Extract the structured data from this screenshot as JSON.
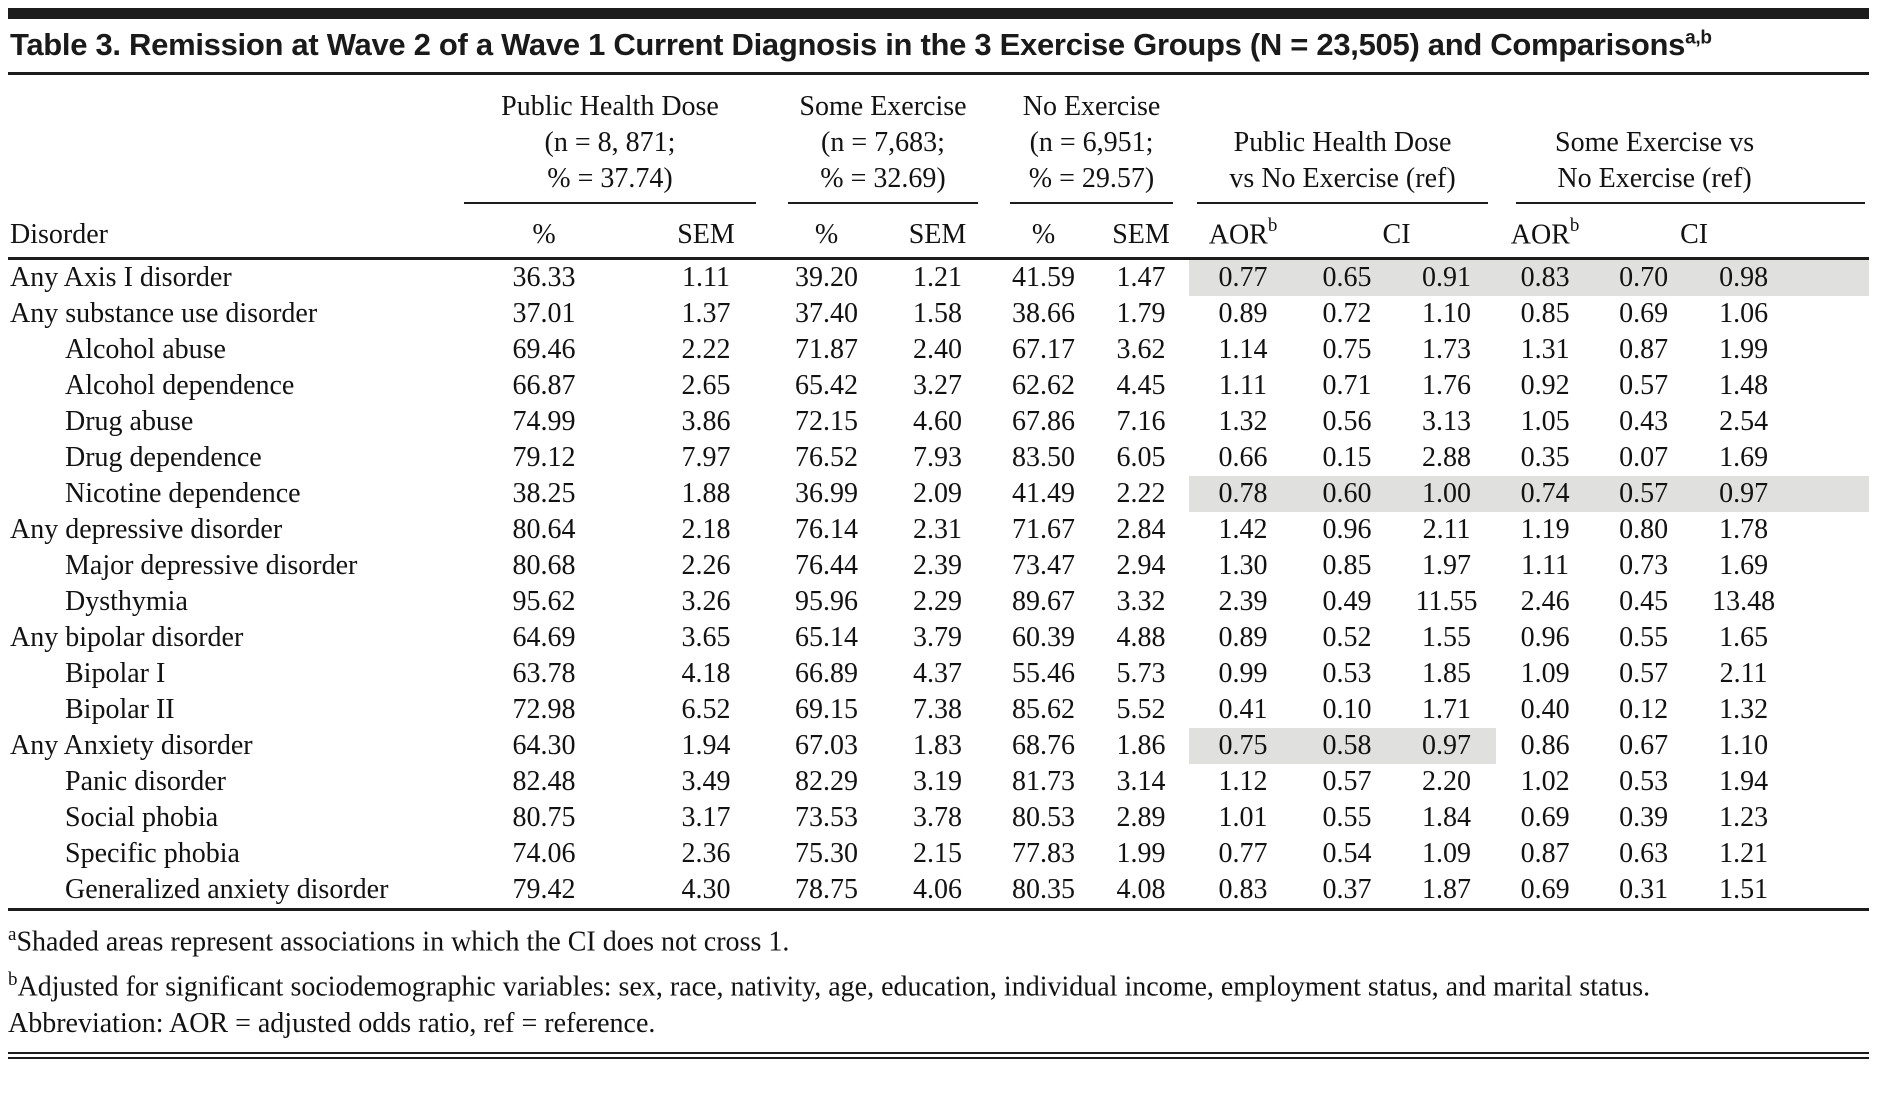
{
  "title": {
    "text": "Table 3. Remission at Wave 2 of a Wave 1 Current Diagnosis in the 3 Exercise Groups (N = 23,505) and Comparisons",
    "footnote_marker": "a,b"
  },
  "table": {
    "header": {
      "disorder_label": "Disorder",
      "groups": [
        {
          "id": "public-health-dose",
          "lines": [
            "Public Health Dose",
            "(n = 8, 871;",
            "% = 37.74)"
          ]
        },
        {
          "id": "some-exercise",
          "lines": [
            "Some Exercise",
            "(n = 7,683;",
            "% = 32.69)"
          ]
        },
        {
          "id": "no-exercise",
          "lines": [
            "No Exercise",
            "(n = 6,951;",
            "% = 29.57)"
          ]
        },
        {
          "id": "phd-vs-no-exercise",
          "lines": [
            "Public Health Dose",
            "vs No Exercise (ref)"
          ]
        },
        {
          "id": "some-vs-no-exercise",
          "lines": [
            "Some Exercise vs",
            "No Exercise (ref)"
          ]
        }
      ],
      "col_labels": {
        "percent": "%",
        "sem": "SEM",
        "aor": "AOR",
        "aor_superscript": "b",
        "ci": "CI"
      }
    },
    "rows": [
      {
        "disorder": "Any Axis I disorder",
        "indent": false,
        "shade": "both",
        "values": [
          "36.33",
          "1.11",
          "39.20",
          "1.21",
          "41.59",
          "1.47",
          "0.77",
          "0.65",
          "0.91",
          "0.83",
          "0.70",
          "0.98"
        ]
      },
      {
        "disorder": "Any substance use disorder",
        "indent": false,
        "shade": "none",
        "values": [
          "37.01",
          "1.37",
          "37.40",
          "1.58",
          "38.66",
          "1.79",
          "0.89",
          "0.72",
          "1.10",
          "0.85",
          "0.69",
          "1.06"
        ]
      },
      {
        "disorder": "Alcohol abuse",
        "indent": true,
        "shade": "none",
        "values": [
          "69.46",
          "2.22",
          "71.87",
          "2.40",
          "67.17",
          "3.62",
          "1.14",
          "0.75",
          "1.73",
          "1.31",
          "0.87",
          "1.99"
        ]
      },
      {
        "disorder": "Alcohol dependence",
        "indent": true,
        "shade": "none",
        "values": [
          "66.87",
          "2.65",
          "65.42",
          "3.27",
          "62.62",
          "4.45",
          "1.11",
          "0.71",
          "1.76",
          "0.92",
          "0.57",
          "1.48"
        ]
      },
      {
        "disorder": "Drug abuse",
        "indent": true,
        "shade": "none",
        "values": [
          "74.99",
          "3.86",
          "72.15",
          "4.60",
          "67.86",
          "7.16",
          "1.32",
          "0.56",
          "3.13",
          "1.05",
          "0.43",
          "2.54"
        ]
      },
      {
        "disorder": "Drug dependence",
        "indent": true,
        "shade": "none",
        "values": [
          "79.12",
          "7.97",
          "76.52",
          "7.93",
          "83.50",
          "6.05",
          "0.66",
          "0.15",
          "2.88",
          "0.35",
          "0.07",
          "1.69"
        ]
      },
      {
        "disorder": "Nicotine dependence",
        "indent": true,
        "shade": "both",
        "values": [
          "38.25",
          "1.88",
          "36.99",
          "2.09",
          "41.49",
          "2.22",
          "0.78",
          "0.60",
          "1.00",
          "0.74",
          "0.57",
          "0.97"
        ]
      },
      {
        "disorder": "Any depressive disorder",
        "indent": false,
        "shade": "none",
        "values": [
          "80.64",
          "2.18",
          "76.14",
          "2.31",
          "71.67",
          "2.84",
          "1.42",
          "0.96",
          "2.11",
          "1.19",
          "0.80",
          "1.78"
        ]
      },
      {
        "disorder": "Major depressive disorder",
        "indent": true,
        "shade": "none",
        "values": [
          "80.68",
          "2.26",
          "76.44",
          "2.39",
          "73.47",
          "2.94",
          "1.30",
          "0.85",
          "1.97",
          "1.11",
          "0.73",
          "1.69"
        ]
      },
      {
        "disorder": "Dysthymia",
        "indent": true,
        "shade": "none",
        "values": [
          "95.62",
          "3.26",
          "95.96",
          "2.29",
          "89.67",
          "3.32",
          "2.39",
          "0.49",
          "11.55",
          "2.46",
          "0.45",
          "13.48"
        ]
      },
      {
        "disorder": "Any bipolar disorder",
        "indent": false,
        "shade": "none",
        "values": [
          "64.69",
          "3.65",
          "65.14",
          "3.79",
          "60.39",
          "4.88",
          "0.89",
          "0.52",
          "1.55",
          "0.96",
          "0.55",
          "1.65"
        ]
      },
      {
        "disorder": "Bipolar I",
        "indent": true,
        "shade": "none",
        "values": [
          "63.78",
          "4.18",
          "66.89",
          "4.37",
          "55.46",
          "5.73",
          "0.99",
          "0.53",
          "1.85",
          "1.09",
          "0.57",
          "2.11"
        ]
      },
      {
        "disorder": "Bipolar II",
        "indent": true,
        "shade": "none",
        "values": [
          "72.98",
          "6.52",
          "69.15",
          "7.38",
          "85.62",
          "5.52",
          "0.41",
          "0.10",
          "1.71",
          "0.40",
          "0.12",
          "1.32"
        ]
      },
      {
        "disorder": "Any Anxiety disorder",
        "indent": false,
        "shade": "first",
        "values": [
          "64.30",
          "1.94",
          "67.03",
          "1.83",
          "68.76",
          "1.86",
          "0.75",
          "0.58",
          "0.97",
          "0.86",
          "0.67",
          "1.10"
        ]
      },
      {
        "disorder": "Panic disorder",
        "indent": true,
        "shade": "none",
        "values": [
          "82.48",
          "3.49",
          "82.29",
          "3.19",
          "81.73",
          "3.14",
          "1.12",
          "0.57",
          "2.20",
          "1.02",
          "0.53",
          "1.94"
        ]
      },
      {
        "disorder": "Social phobia",
        "indent": true,
        "shade": "none",
        "values": [
          "80.75",
          "3.17",
          "73.53",
          "3.78",
          "80.53",
          "2.89",
          "1.01",
          "0.55",
          "1.84",
          "0.69",
          "0.39",
          "1.23"
        ]
      },
      {
        "disorder": "Specific phobia",
        "indent": true,
        "shade": "none",
        "values": [
          "74.06",
          "2.36",
          "75.30",
          "2.15",
          "77.83",
          "1.99",
          "0.77",
          "0.54",
          "1.09",
          "0.87",
          "0.63",
          "1.21"
        ]
      },
      {
        "disorder": "Generalized anxiety disorder",
        "indent": true,
        "shade": "none",
        "values": [
          "79.42",
          "4.30",
          "78.75",
          "4.06",
          "80.35",
          "4.08",
          "0.83",
          "0.37",
          "1.87",
          "0.69",
          "0.31",
          "1.51"
        ]
      }
    ]
  },
  "footnotes": {
    "a_marker": "a",
    "a_text": "Shaded areas represent associations in which the CI does not cross 1.",
    "b_marker": "b",
    "b_text": "Adjusted for significant sociodemographic variables: sex, race, nativity, age, education, individual income, employment status, and marital status.",
    "abbreviation": "Abbreviation: AOR = adjusted odds ratio, ref = reference."
  },
  "colors": {
    "shade": "#e0e0de",
    "rule": "#1c1c1c",
    "text": "#121212"
  }
}
